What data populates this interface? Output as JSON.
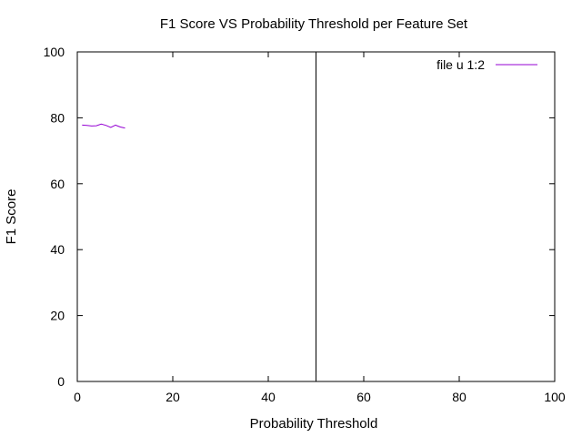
{
  "chart_data": {
    "type": "line",
    "title": "F1 Score VS Probability Threshold per Feature Set",
    "xlabel": "Probability Threshold",
    "ylabel": "F1 Score",
    "xlim": [
      0,
      100
    ],
    "ylim": [
      0,
      100
    ],
    "xticks": [
      0,
      20,
      40,
      60,
      80,
      100
    ],
    "yticks": [
      0,
      20,
      40,
      60,
      80,
      100
    ],
    "grid": false,
    "legend_position": "top-right",
    "series": [
      {
        "name": "file u 1:2",
        "color": "#9400d3",
        "x": [
          1,
          2,
          3,
          4,
          5,
          6,
          7,
          8,
          9,
          10
        ],
        "y": [
          77.8,
          77.7,
          77.5,
          77.6,
          78.1,
          77.7,
          77.1,
          77.8,
          77.2,
          76.9
        ]
      }
    ],
    "vertical_lines": [
      {
        "x": 50,
        "color": "#000000"
      }
    ]
  }
}
